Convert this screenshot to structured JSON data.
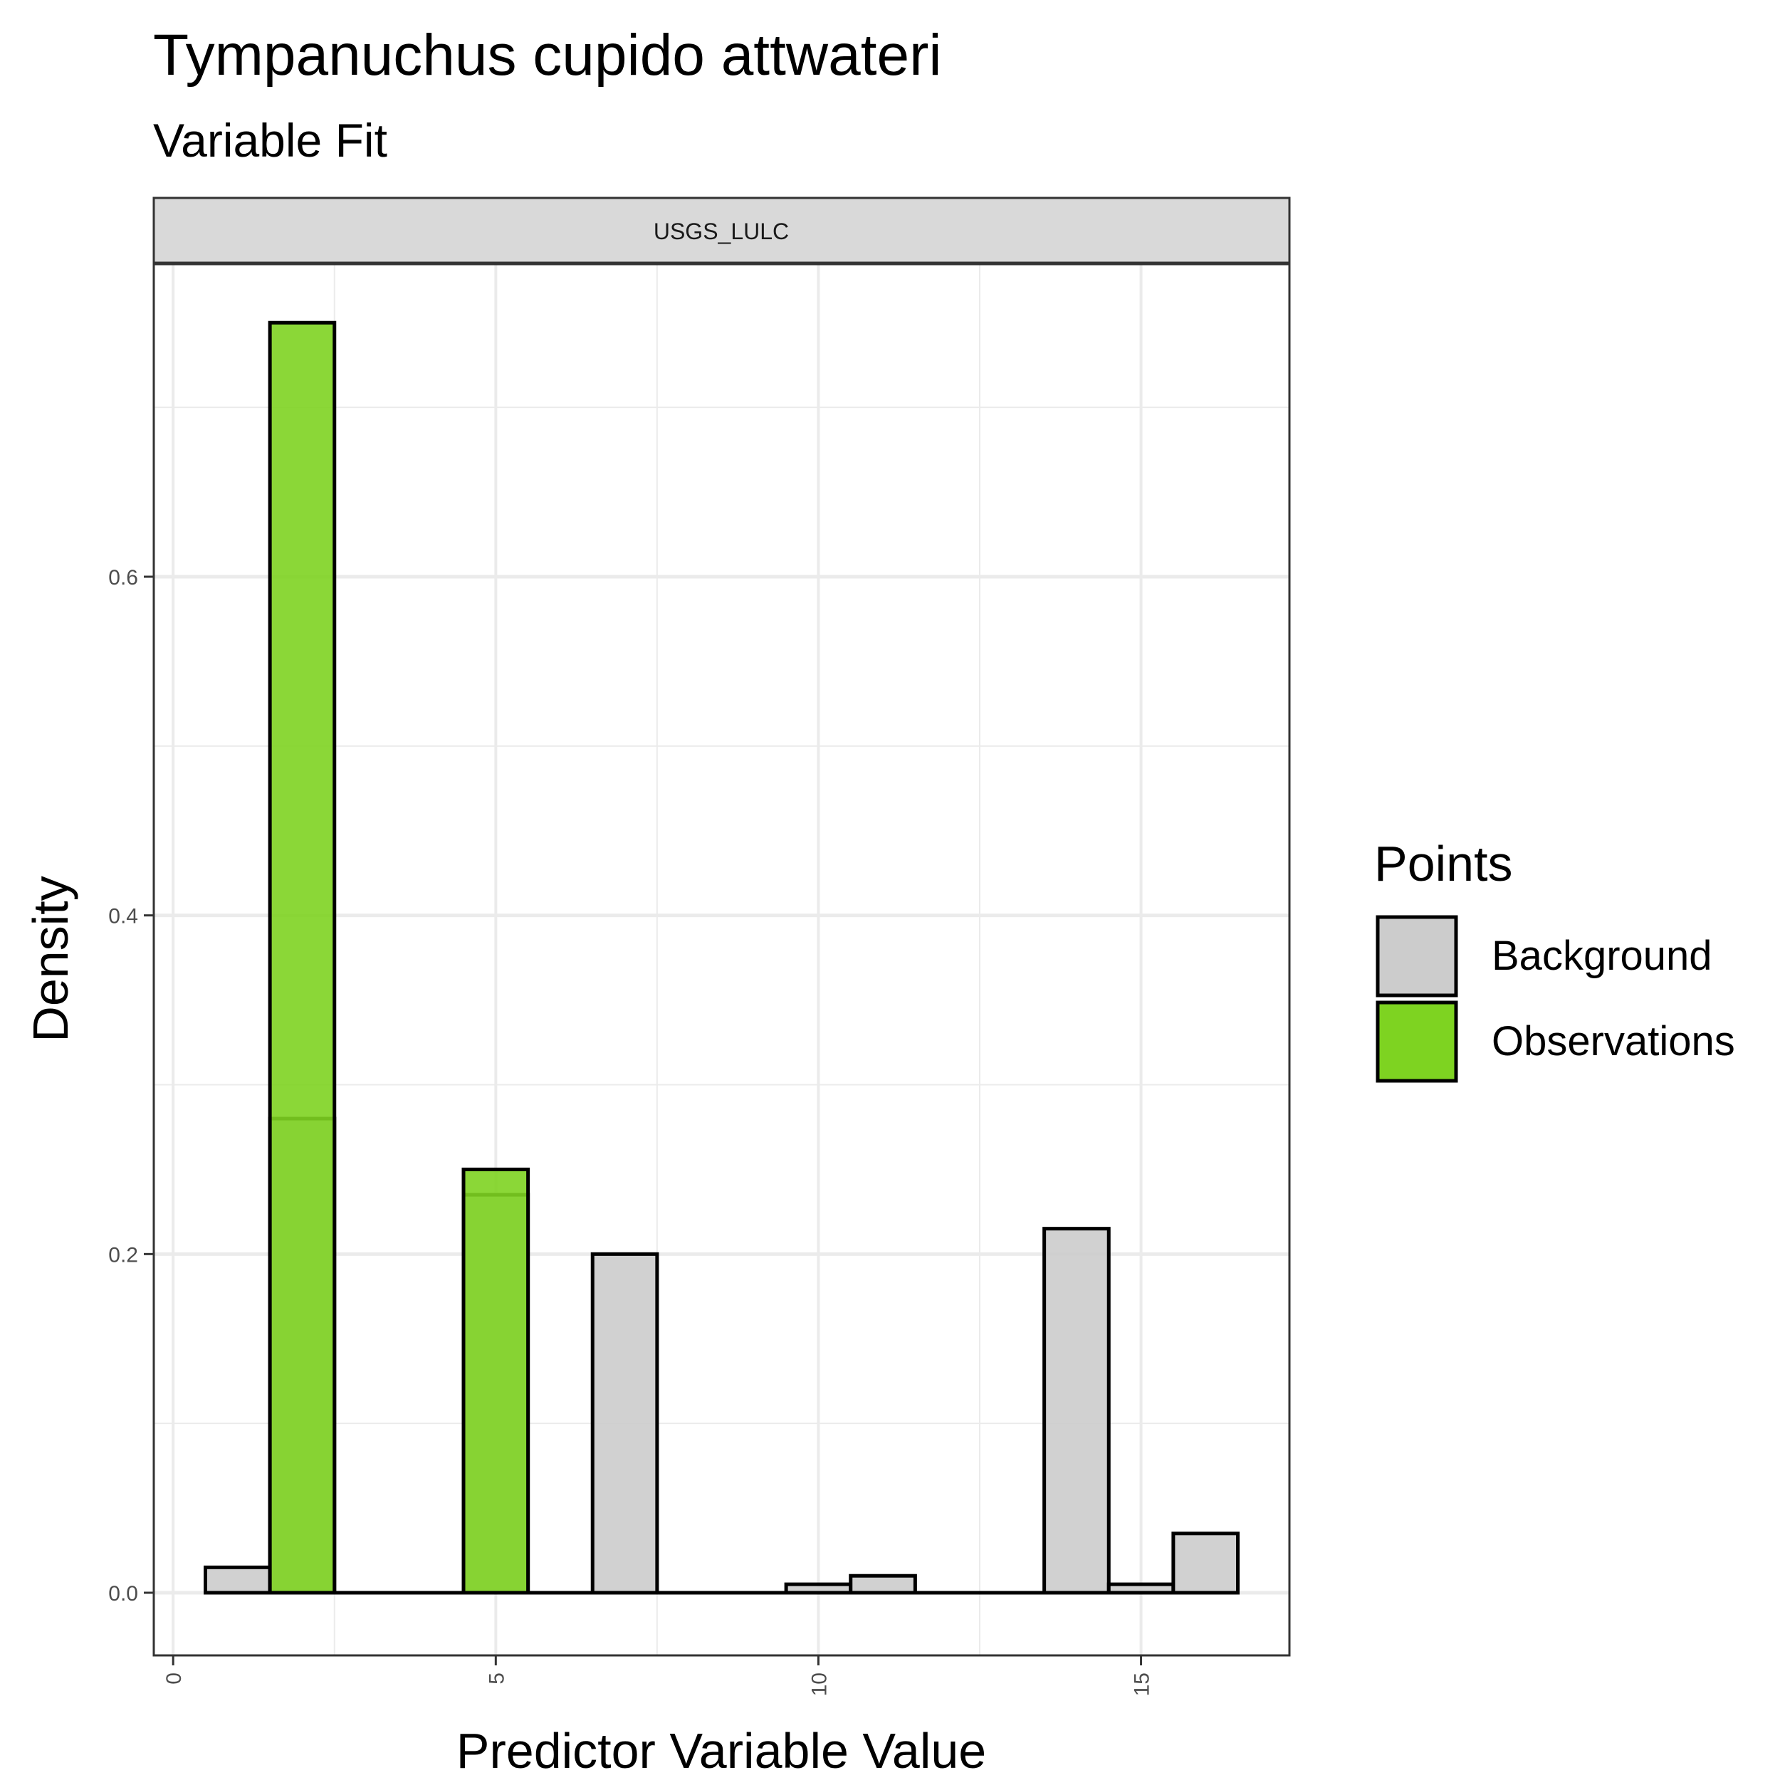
{
  "chart_data": {
    "type": "bar",
    "title": "Tympanuchus cupido attwateri",
    "subtitle": "Variable Fit",
    "facet_label": "USGS_LULC",
    "xlabel": "Predictor Variable Value",
    "ylabel": "Density",
    "xlim": [
      -0.3,
      17.3
    ],
    "ylim": [
      -0.037,
      0.785
    ],
    "x_ticks": [
      0,
      5,
      10,
      15
    ],
    "x_tick_labels": [
      "0",
      "5",
      "10",
      "15"
    ],
    "y_ticks": [
      0.0,
      0.2,
      0.4,
      0.6
    ],
    "y_tick_labels": [
      "0.0",
      "0.2",
      "0.4",
      "0.6"
    ],
    "grid": true,
    "bin_width": 1,
    "series": [
      {
        "name": "Background",
        "color": "#cccccc",
        "points": [
          {
            "x": 1,
            "y": 0.015
          },
          {
            "x": 2,
            "y": 0.28
          },
          {
            "x": 5,
            "y": 0.235
          },
          {
            "x": 7,
            "y": 0.2
          },
          {
            "x": 10,
            "y": 0.005
          },
          {
            "x": 11,
            "y": 0.01
          },
          {
            "x": 14,
            "y": 0.215
          },
          {
            "x": 15,
            "y": 0.005
          },
          {
            "x": 16,
            "y": 0.035
          }
        ]
      },
      {
        "name": "Observations",
        "color": "#7ed321",
        "points": [
          {
            "x": 2,
            "y": 0.75
          },
          {
            "x": 5,
            "y": 0.25
          }
        ]
      }
    ],
    "legend": {
      "title": "Points",
      "position": "right",
      "items": [
        {
          "label": "Background",
          "color": "#cccccc"
        },
        {
          "label": "Observations",
          "color": "#7ed321"
        }
      ]
    }
  }
}
